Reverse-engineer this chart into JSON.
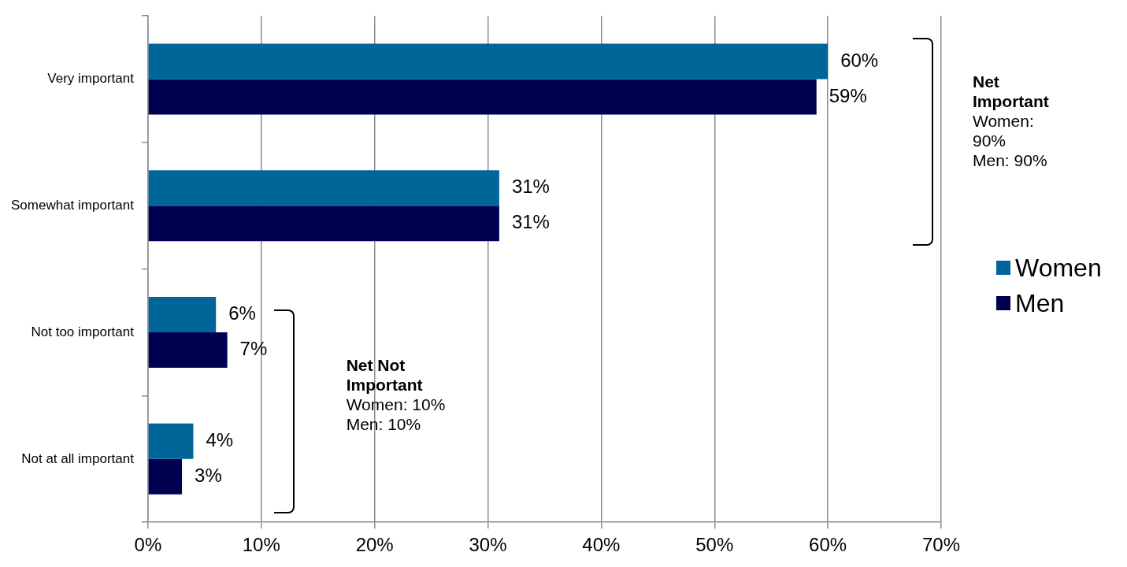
{
  "chart_data": {
    "type": "bar",
    "orientation": "horizontal",
    "categories": [
      "Very important",
      "Somewhat important",
      "Not too important",
      "Not at all important"
    ],
    "series": [
      {
        "name": "Women",
        "color": "#006699",
        "values": [
          60,
          31,
          6,
          4
        ],
        "value_labels": [
          "60%",
          "31%",
          "6%",
          "4%"
        ]
      },
      {
        "name": "Men",
        "color": "#000050",
        "values": [
          59,
          31,
          7,
          3
        ],
        "value_labels": [
          "59%",
          "31%",
          "7%",
          "3%"
        ]
      }
    ],
    "xlim": [
      0,
      70
    ],
    "xticks": [
      {
        "value": 0,
        "label": "0%"
      },
      {
        "value": 10,
        "label": "10%"
      },
      {
        "value": 20,
        "label": "20%"
      },
      {
        "value": 30,
        "label": "30%"
      },
      {
        "value": 40,
        "label": "40%"
      },
      {
        "value": 50,
        "label": "50%"
      },
      {
        "value": 60,
        "label": "60%"
      },
      {
        "value": 70,
        "label": "70%"
      }
    ],
    "grid": "x",
    "legend": "right",
    "annotations": [
      "Net Important",
      "Women: 90%",
      "Men: 90%",
      "Net Not Important",
      "Women: 10%",
      "Men: 10%"
    ]
  }
}
